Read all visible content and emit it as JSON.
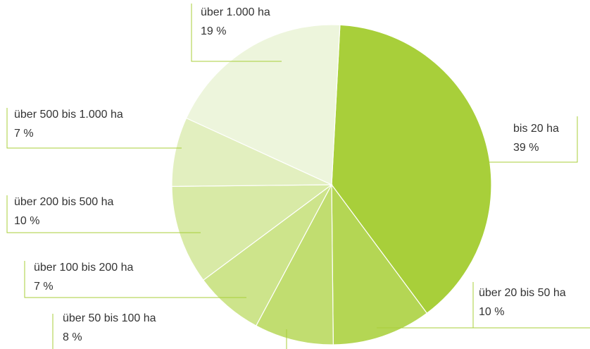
{
  "chart_data": {
    "type": "pie",
    "categories": [
      "bis 20 ha",
      "über 20 bis 50 ha",
      "über 50 bis 100 ha",
      "über 100 bis 200 ha",
      "über 200 bis 500 ha",
      "über 500 bis 1.000 ha",
      "über 1.000 ha"
    ],
    "values": [
      39,
      10,
      8,
      7,
      10,
      7,
      19
    ],
    "value_labels": [
      "39 %",
      "10 %",
      "8 %",
      "7 %",
      "10 %",
      "7 %",
      "19 %"
    ],
    "colors": [
      "#a8cf3a",
      "#b4d654",
      "#c1dd70",
      "#cde48b",
      "#d8eaa6",
      "#e2efbf",
      "#edf5dc"
    ]
  }
}
